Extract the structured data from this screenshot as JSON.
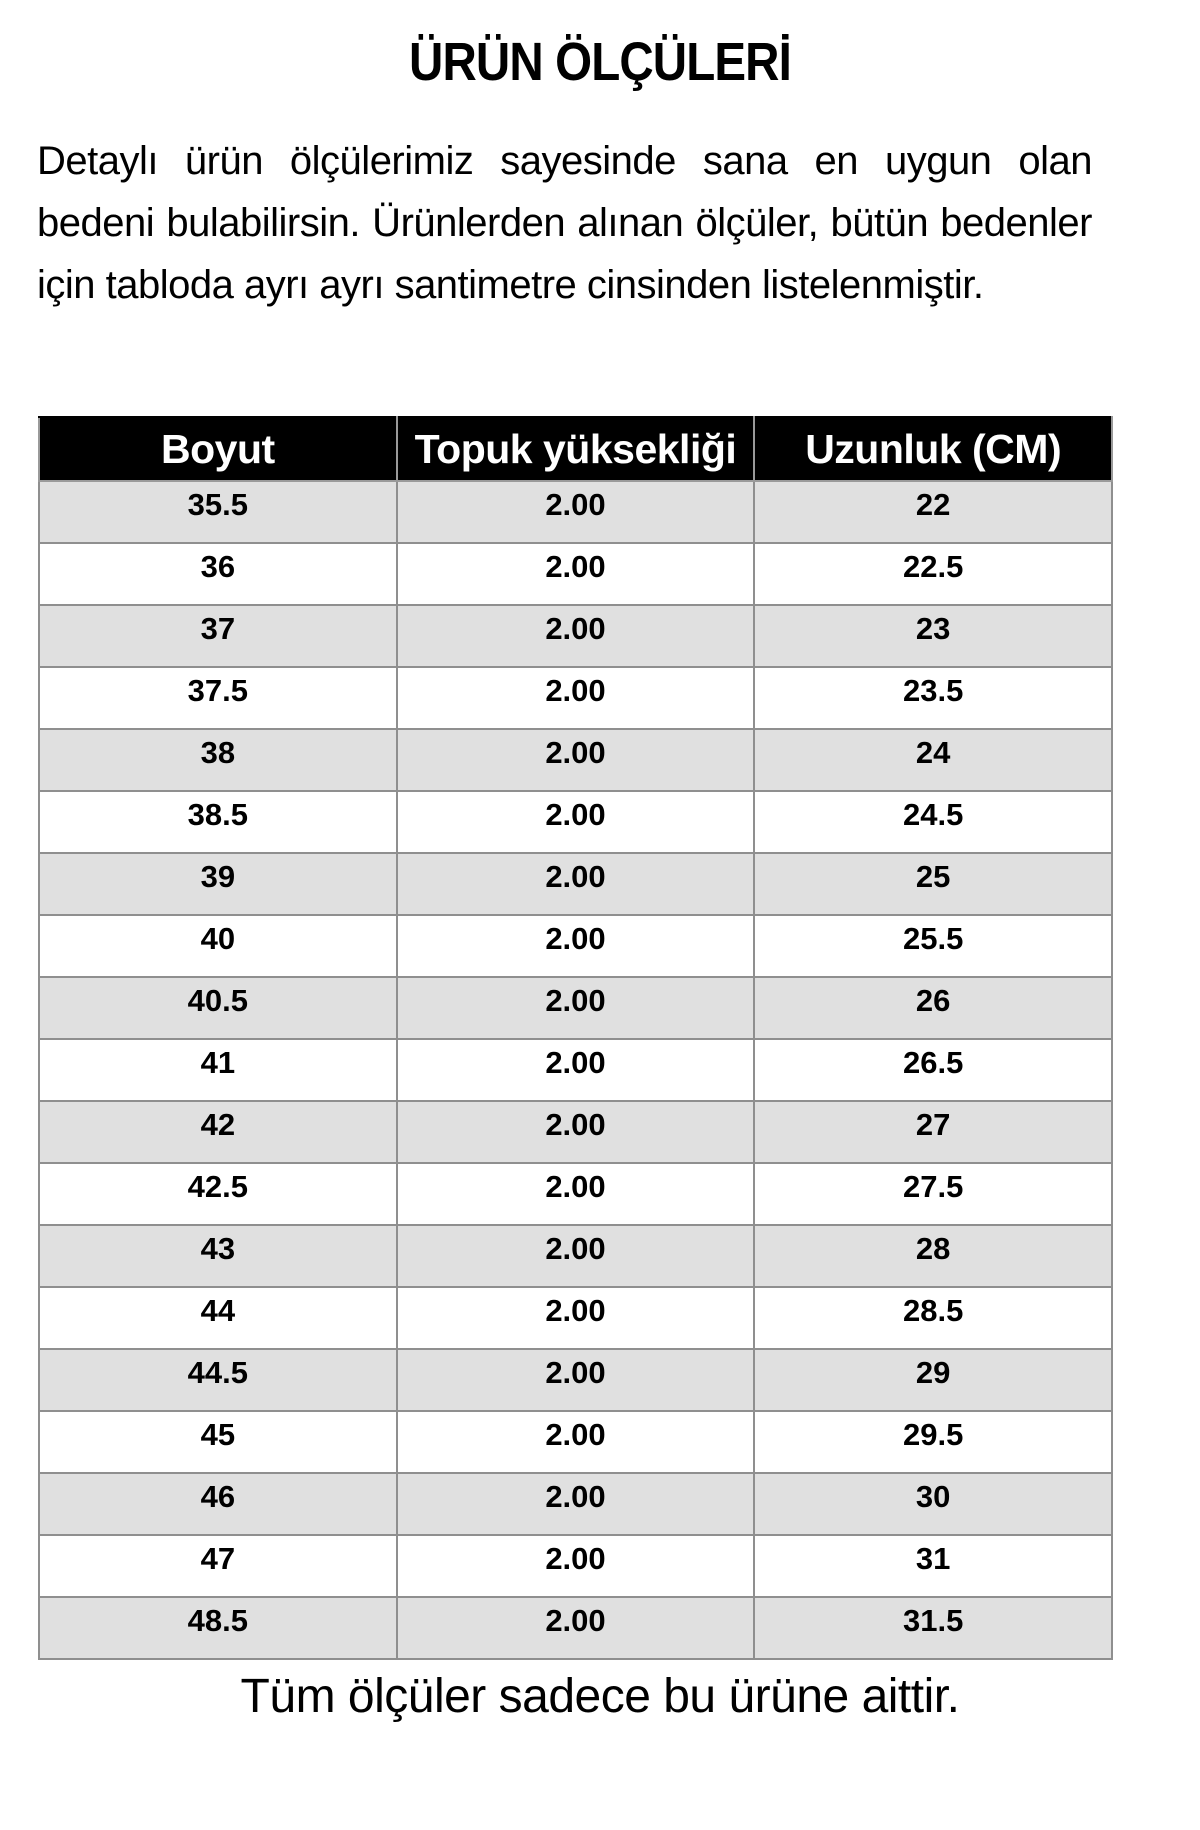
{
  "title": "ÜRÜN ÖLÇÜLERİ",
  "intro": "Detaylı ürün ölçülerimiz sayesinde sana en uygun olan bedeni bulabilirsin. Ürünlerden alınan ölçüler, bütün bedenler için tabloda ayrı ayrı santimetre cinsinden listelenmiştir.",
  "table": {
    "columns": [
      "Boyut",
      "Topuk yüksekliği",
      "Uzunluk (CM)"
    ],
    "rows": [
      [
        "35.5",
        "2.00",
        "22"
      ],
      [
        "36",
        "2.00",
        "22.5"
      ],
      [
        "37",
        "2.00",
        "23"
      ],
      [
        "37.5",
        "2.00",
        "23.5"
      ],
      [
        "38",
        "2.00",
        "24"
      ],
      [
        "38.5",
        "2.00",
        "24.5"
      ],
      [
        "39",
        "2.00",
        "25"
      ],
      [
        "40",
        "2.00",
        "25.5"
      ],
      [
        "40.5",
        "2.00",
        "26"
      ],
      [
        "41",
        "2.00",
        "26.5"
      ],
      [
        "42",
        "2.00",
        "27"
      ],
      [
        "42.5",
        "2.00",
        "27.5"
      ],
      [
        "43",
        "2.00",
        "28"
      ],
      [
        "44",
        "2.00",
        "28.5"
      ],
      [
        "44.5",
        "2.00",
        "29"
      ],
      [
        "45",
        "2.00",
        "29.5"
      ],
      [
        "46",
        "2.00",
        "30"
      ],
      [
        "47",
        "2.00",
        "31"
      ],
      [
        "48.5",
        "2.00",
        "31.5"
      ]
    ]
  },
  "footer": "Tüm ölçüler sadece bu ürüne aittir.",
  "colors": {
    "header_bg": "#000000",
    "header_text": "#ffffff",
    "alt_row_bg": "#e0e0e0",
    "row_bg": "#ffffff",
    "border": "#8f8f8f",
    "text": "#000000"
  }
}
